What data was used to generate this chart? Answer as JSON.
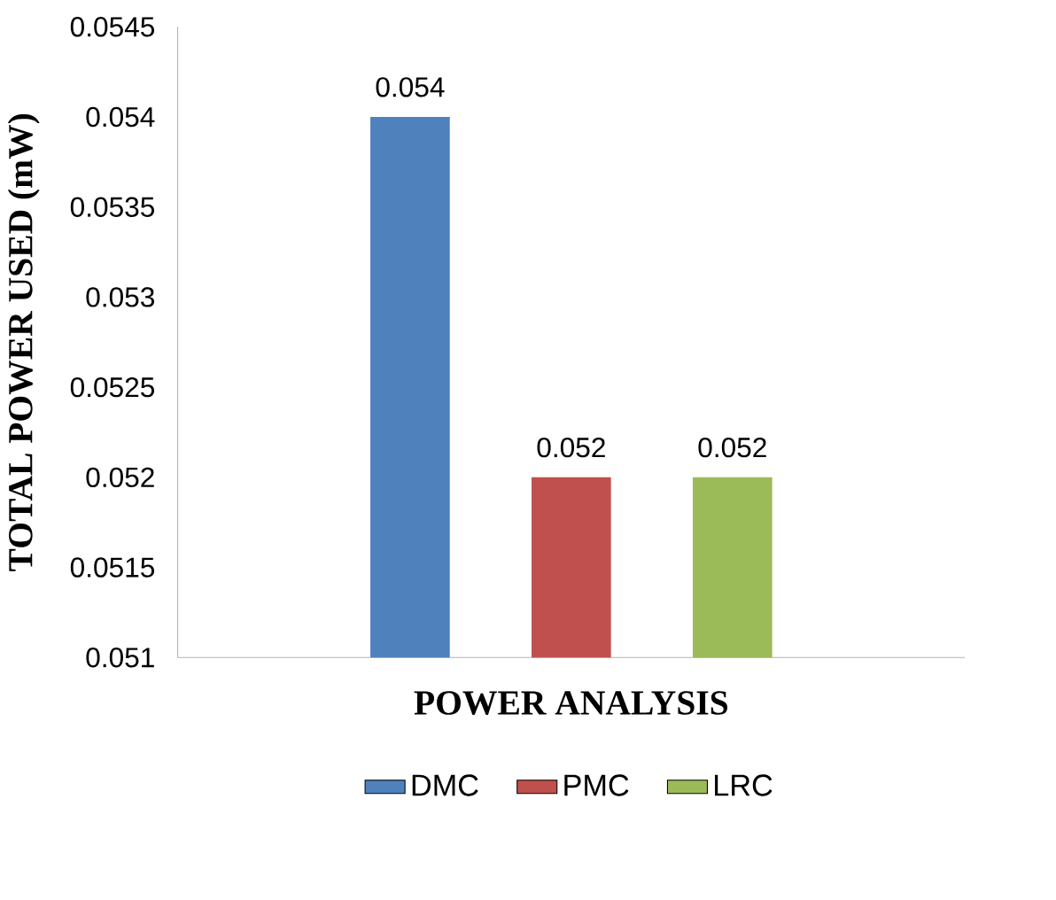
{
  "chart_data": {
    "type": "bar",
    "xlabel": "POWER ANALYSIS",
    "ylabel": "TOTAL POWER USED (mW)",
    "categories": [
      null
    ],
    "series": [
      {
        "name": "DMC",
        "color": "#4f81bd",
        "values": [
          0.054
        ]
      },
      {
        "name": "PMC",
        "color": "#c0504d",
        "values": [
          0.052
        ]
      },
      {
        "name": "LRC",
        "color": "#9bbb59",
        "values": [
          0.052
        ]
      }
    ],
    "ylim": [
      0.051,
      0.0545
    ],
    "yticks": [
      0.051,
      0.0515,
      0.052,
      0.0525,
      0.053,
      0.0535,
      0.054,
      0.0545
    ],
    "data_labels": true,
    "legend": "bottom",
    "grid": false
  }
}
